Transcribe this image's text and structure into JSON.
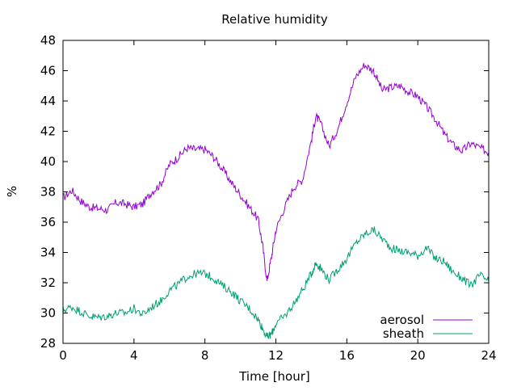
{
  "chart_data": {
    "type": "line",
    "title": "Relative humidity",
    "xlabel": "Time [hour]",
    "ylabel": "%",
    "xlim": [
      0,
      24
    ],
    "ylim": [
      28,
      48
    ],
    "x_ticks": [
      0,
      4,
      8,
      12,
      16,
      20,
      24
    ],
    "y_ticks": [
      28,
      30,
      32,
      34,
      36,
      38,
      40,
      42,
      44,
      46,
      48
    ],
    "grid": false,
    "legend_position": "bottom-right",
    "series": [
      {
        "name": "aerosol",
        "color": "#9400d3",
        "x": [
          0,
          0.5,
          1,
          1.5,
          2,
          2.5,
          3,
          3.5,
          4,
          4.5,
          5,
          5.5,
          6,
          6.5,
          7,
          7.5,
          8,
          8.5,
          9,
          9.5,
          10,
          10.5,
          11,
          11.25,
          11.5,
          11.75,
          12,
          12.5,
          13,
          13.5,
          14,
          14.25,
          14.5,
          15,
          15.5,
          16,
          16.5,
          17,
          17.5,
          18,
          18.5,
          19,
          19.5,
          20,
          20.5,
          21,
          21.5,
          22,
          22.5,
          23,
          23.5,
          24
        ],
        "y": [
          37.6,
          38.1,
          37.4,
          37.0,
          36.9,
          36.8,
          37.3,
          37.2,
          37.0,
          37.2,
          38.0,
          38.5,
          39.8,
          40.3,
          40.9,
          40.8,
          40.8,
          40.3,
          39.5,
          38.6,
          37.8,
          37.0,
          36.2,
          34.5,
          32.1,
          33.7,
          35.5,
          37.0,
          38.3,
          38.8,
          41.4,
          43.0,
          42.6,
          41.0,
          42.2,
          43.9,
          45.6,
          46.4,
          46.0,
          44.7,
          44.9,
          45.0,
          44.6,
          44.3,
          43.6,
          42.8,
          41.8,
          41.1,
          40.7,
          41.2,
          40.9,
          40.6
        ]
      },
      {
        "name": "sheath",
        "color": "#009e73",
        "x": [
          0,
          0.5,
          1,
          1.5,
          2,
          2.5,
          3,
          3.5,
          4,
          4.5,
          5,
          5.5,
          6,
          6.5,
          7,
          7.5,
          8,
          8.5,
          9,
          9.5,
          10,
          10.5,
          11,
          11.25,
          11.5,
          11.75,
          12,
          12.5,
          13,
          13.5,
          14,
          14.25,
          14.5,
          15,
          15.5,
          16,
          16.5,
          17,
          17.5,
          18,
          18.5,
          19,
          19.5,
          20,
          20.5,
          21,
          21.5,
          22,
          22.5,
          23,
          23.5,
          24
        ],
        "y": [
          30.2,
          30.4,
          30.1,
          29.8,
          29.7,
          29.8,
          30.0,
          30.0,
          30.3,
          29.9,
          30.4,
          30.8,
          31.5,
          31.9,
          32.4,
          32.6,
          32.6,
          32.3,
          31.8,
          31.4,
          30.8,
          30.3,
          29.6,
          29.0,
          28.4,
          28.6,
          29.3,
          29.8,
          30.6,
          31.5,
          32.6,
          33.3,
          33.0,
          32.2,
          32.9,
          33.6,
          34.6,
          35.2,
          35.5,
          34.9,
          34.3,
          34.1,
          34.0,
          33.8,
          34.3,
          33.6,
          33.4,
          32.7,
          32.3,
          31.8,
          32.5,
          32.1
        ]
      }
    ]
  }
}
